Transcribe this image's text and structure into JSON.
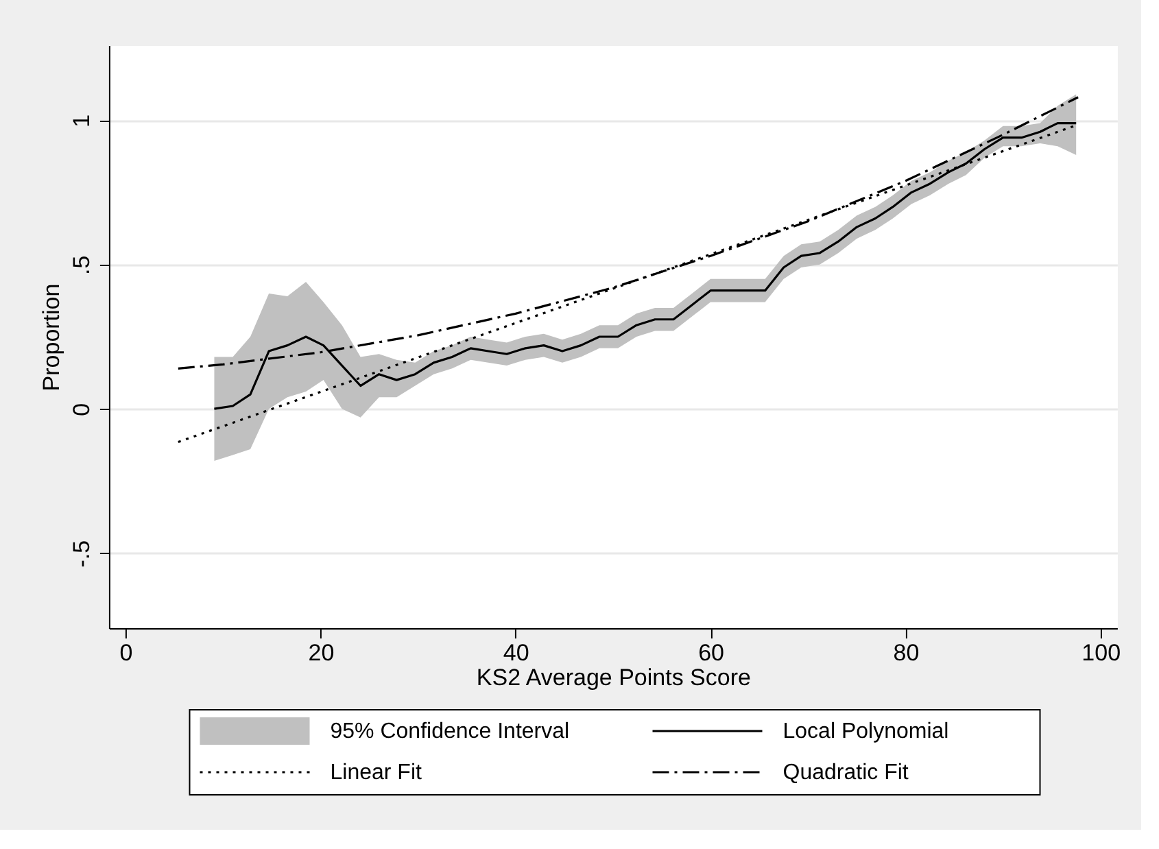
{
  "chart_data": {
    "type": "line",
    "xlabel": "KS2 Average Points Score",
    "ylabel": "Proportion",
    "xlim": [
      -1.7,
      101.7
    ],
    "xticks": [
      0,
      20,
      40,
      60,
      80,
      100
    ],
    "ylim": [
      -0.76,
      1.26
    ],
    "yticks": [
      {
        "value": -0.5,
        "label": "-.5"
      },
      0,
      {
        "value": 0.5,
        "label": ".5"
      },
      1
    ],
    "grid": "y",
    "legend": "bottom",
    "annotations": [
      "95% Confidence Interval"
    ],
    "series": [
      {
        "name": "Local Polynomial",
        "type": "line",
        "color": "#000000",
        "line_style": "solid",
        "x": [
          9.1,
          11.0,
          12.8,
          14.7,
          16.6,
          18.5,
          20.3,
          22.2,
          24.1,
          26.0,
          27.8,
          29.7,
          31.6,
          33.5,
          35.4,
          37.2,
          39.1,
          41.0,
          42.9,
          44.8,
          46.7,
          48.6,
          50.5,
          52.4,
          54.3,
          56.2,
          58.1,
          60.0,
          61.8,
          63.7,
          65.6,
          67.5,
          69.3,
          71.2,
          73.1,
          75.0,
          76.9,
          78.7,
          80.6,
          82.5,
          84.4,
          86.2,
          88.1,
          90.0,
          91.9,
          93.8,
          95.6,
          97.5
        ],
        "values": [
          0.0,
          0.01,
          0.05,
          0.2,
          0.22,
          0.25,
          0.22,
          0.15,
          0.08,
          0.12,
          0.1,
          0.12,
          0.16,
          0.18,
          0.21,
          0.2,
          0.19,
          0.21,
          0.22,
          0.2,
          0.22,
          0.25,
          0.25,
          0.29,
          0.31,
          0.31,
          0.36,
          0.41,
          0.41,
          0.41,
          0.41,
          0.49,
          0.53,
          0.54,
          0.58,
          0.63,
          0.66,
          0.7,
          0.75,
          0.78,
          0.82,
          0.85,
          0.9,
          0.94,
          0.94,
          0.96,
          0.99,
          0.99
        ],
        "lower": [
          -0.18,
          -0.16,
          -0.14,
          0.0,
          0.04,
          0.06,
          0.1,
          0.0,
          -0.03,
          0.04,
          0.04,
          0.08,
          0.12,
          0.14,
          0.17,
          0.16,
          0.15,
          0.17,
          0.18,
          0.16,
          0.18,
          0.21,
          0.21,
          0.25,
          0.27,
          0.27,
          0.32,
          0.37,
          0.37,
          0.37,
          0.37,
          0.45,
          0.49,
          0.5,
          0.54,
          0.59,
          0.62,
          0.66,
          0.71,
          0.74,
          0.78,
          0.81,
          0.87,
          0.91,
          0.91,
          0.92,
          0.91,
          0.88
        ],
        "upper": [
          0.18,
          0.18,
          0.25,
          0.4,
          0.39,
          0.44,
          0.37,
          0.29,
          0.18,
          0.19,
          0.17,
          0.16,
          0.2,
          0.22,
          0.25,
          0.24,
          0.23,
          0.25,
          0.26,
          0.24,
          0.26,
          0.29,
          0.29,
          0.33,
          0.35,
          0.35,
          0.4,
          0.45,
          0.45,
          0.45,
          0.45,
          0.53,
          0.57,
          0.58,
          0.62,
          0.67,
          0.7,
          0.74,
          0.79,
          0.82,
          0.86,
          0.89,
          0.93,
          0.98,
          0.98,
          0.99,
          1.05,
          1.09
        ]
      },
      {
        "name": "Linear Fit",
        "type": "line",
        "color": "#000000",
        "line_style": "dotted",
        "x": [
          5.4,
          97.7
        ],
        "values": [
          -0.115,
          0.985
        ]
      },
      {
        "name": "Quadratic Fit",
        "type": "line",
        "color": "#000000",
        "line_style": "dashed",
        "x": [
          5.4,
          10,
          20,
          30,
          40,
          50,
          60,
          70,
          80,
          90,
          97.7
        ],
        "values": [
          0.14,
          0.154,
          0.196,
          0.255,
          0.33,
          0.42,
          0.53,
          0.65,
          0.79,
          0.95,
          1.08
        ]
      }
    ]
  }
}
